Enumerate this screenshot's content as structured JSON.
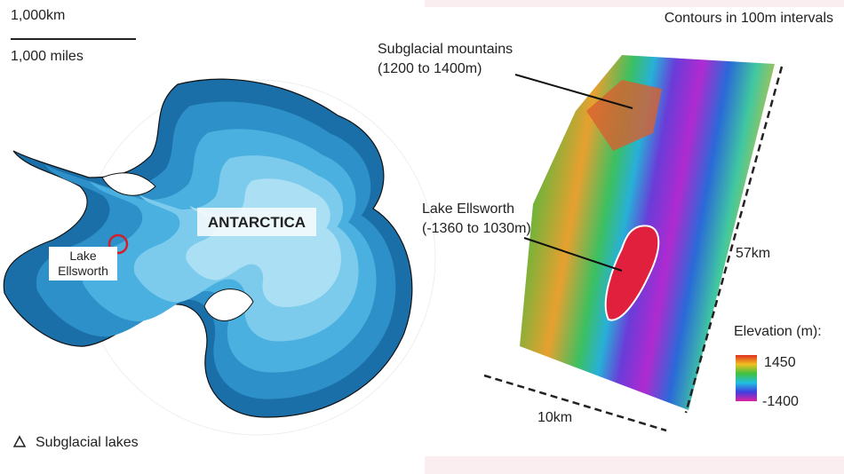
{
  "scale": {
    "km": "1,000km",
    "miles": "1,000 miles"
  },
  "map": {
    "title": "ANTARCTICA",
    "lake_label": "Lake Ellsworth",
    "legend": "Subglacial lakes"
  },
  "terrain": {
    "contours": "Contours in 100m intervals",
    "mountains": {
      "label": "Subglacial mountains",
      "range": "(1200 to 1400m)"
    },
    "lake": {
      "label": "Lake Ellsworth",
      "range": "(-1360 to 1030m)"
    },
    "length": "57km",
    "width": "10km",
    "elevation": {
      "title": "Elevation (m):",
      "max": "1450",
      "min": "-1400"
    }
  }
}
